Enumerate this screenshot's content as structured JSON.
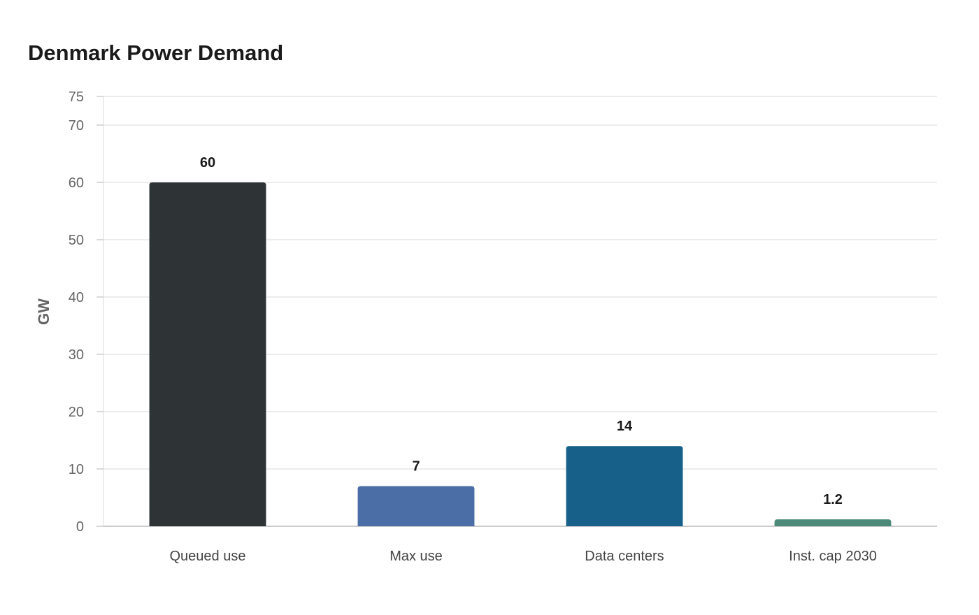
{
  "chart_data": {
    "type": "bar",
    "title": "Denmark Power Demand",
    "xlabel": "",
    "ylabel": "GW",
    "ylim": [
      0,
      75
    ],
    "yticks": [
      0,
      10,
      20,
      30,
      40,
      50,
      60,
      70,
      75
    ],
    "grid": true,
    "categories": [
      "Queued use",
      "Max use",
      "Data centers",
      "Inst. cap 2030"
    ],
    "values": [
      60,
      7,
      14,
      1.2
    ],
    "value_labels": [
      "60",
      "7",
      "14",
      "1.2"
    ],
    "colors": [
      "#2e3436",
      "#4a6ea5",
      "#176089",
      "#4e8a79"
    ]
  },
  "colors": {
    "grid": "#e6e6e6",
    "axis": "#cccccc",
    "background": "#ffffff"
  }
}
